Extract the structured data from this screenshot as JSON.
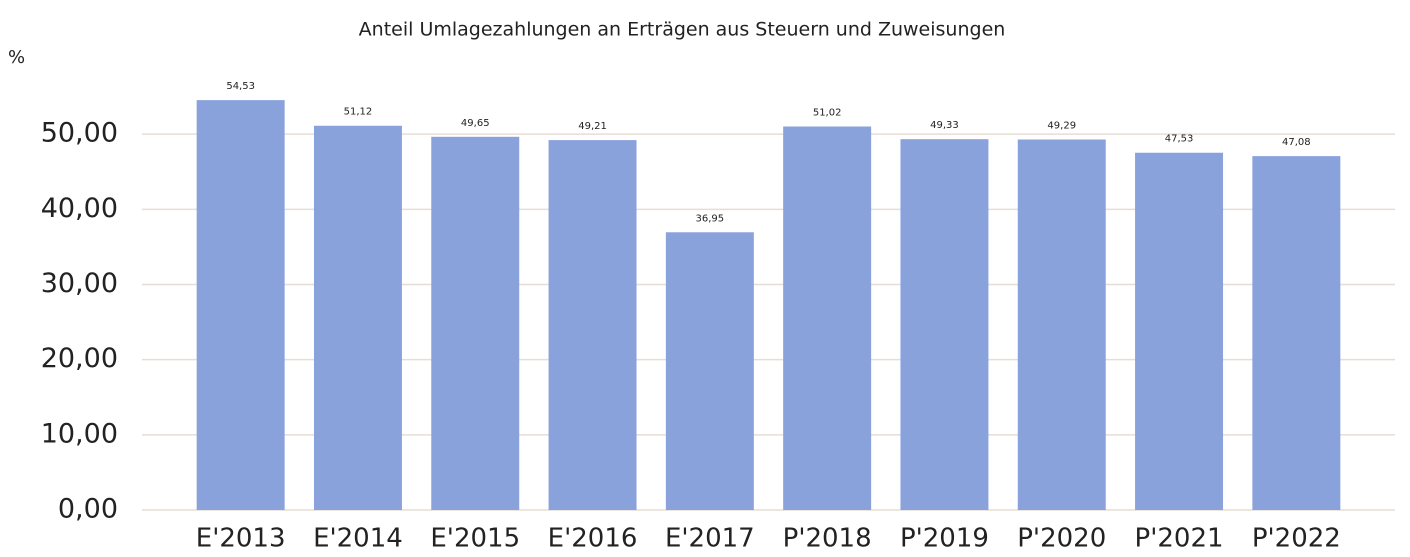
{
  "chart_data": {
    "type": "bar",
    "title": "Anteil Umlagezahlungen an Erträgen aus Steuern und Zuweisungen",
    "y_label": "%",
    "categories": [
      "E'2013",
      "E'2014",
      "E'2015",
      "E'2016",
      "E'2017",
      "P'2018",
      "P'2019",
      "P'2020",
      "P'2021",
      "P'2022"
    ],
    "values": [
      54.53,
      51.12,
      49.65,
      49.21,
      36.95,
      51.02,
      49.33,
      49.29,
      47.53,
      47.08
    ],
    "value_labels": [
      "54,53",
      "51,12",
      "49,65",
      "49,21",
      "36,95",
      "51,02",
      "49,33",
      "49,29",
      "47,53",
      "47,08"
    ],
    "color": "#8aa2dc",
    "ylim": [
      0,
      60
    ],
    "yticks": [
      {
        "value": 0,
        "label": "0,00"
      },
      {
        "value": 10,
        "label": "10,00"
      },
      {
        "value": 20,
        "label": "20,00"
      },
      {
        "value": 30,
        "label": "30,00"
      },
      {
        "value": 40,
        "label": "40,00"
      },
      {
        "value": 50,
        "label": "50,00"
      }
    ],
    "grid": true
  }
}
